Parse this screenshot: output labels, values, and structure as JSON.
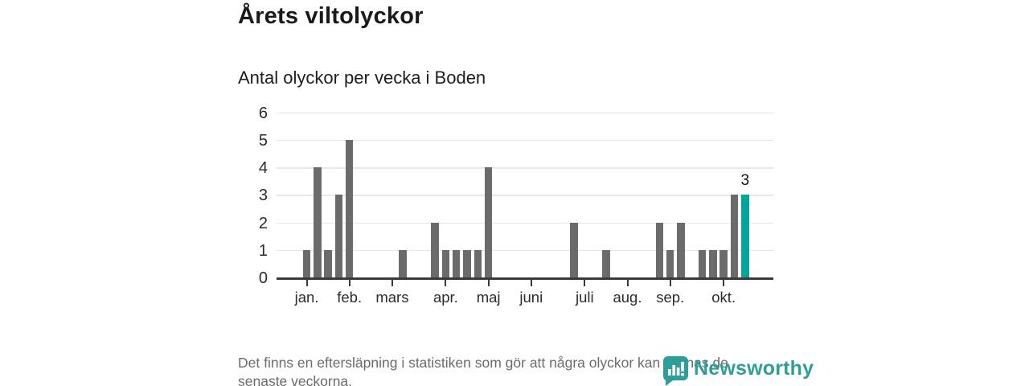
{
  "title": "Årets viltolyckor",
  "subtitle": "Antal olyckor per vecka i Boden",
  "footer": {
    "lines": [
      "Det finns en eftersläpning i statistiken som gör att några olyckor kan saknas de",
      "senaste veckorna."
    ]
  },
  "logo": {
    "text": "Newsworthy",
    "icon": "newsworthy-marker-bar-chart-icon"
  },
  "colors": {
    "bar": "#6b6b6b",
    "accent": "#00a69c",
    "logo_teal": "#2e9e99",
    "grid": "#e7e7e7",
    "axis": "#3a3a3a",
    "text": "#1a1a1a",
    "muted_text": "#6b6b6b"
  },
  "chart_data": {
    "type": "bar",
    "title": "Årets viltolyckor",
    "subtitle": "Antal olyckor per vecka i Boden",
    "x_unit": "vecka",
    "n_weeks": 42,
    "values": [
      1,
      4,
      1,
      3,
      5,
      0,
      0,
      0,
      0,
      1,
      0,
      0,
      2,
      1,
      1,
      1,
      1,
      4,
      0,
      0,
      0,
      0,
      0,
      0,
      0,
      2,
      0,
      0,
      1,
      0,
      0,
      0,
      0,
      2,
      1,
      2,
      0,
      1,
      1,
      1,
      3,
      3
    ],
    "highlight_index": 41,
    "highlight_label": "3",
    "highlight_color": "#00a69c",
    "month_ticks": [
      {
        "label": "jan.",
        "week": 0
      },
      {
        "label": "feb.",
        "week": 4
      },
      {
        "label": "mars",
        "week": 8
      },
      {
        "label": "apr.",
        "week": 13
      },
      {
        "label": "maj",
        "week": 17
      },
      {
        "label": "juni",
        "week": 21
      },
      {
        "label": "juli",
        "week": 26
      },
      {
        "label": "aug.",
        "week": 30
      },
      {
        "label": "sep.",
        "week": 34
      },
      {
        "label": "okt.",
        "week": 39
      }
    ],
    "y_ticks": [
      0,
      1,
      2,
      3,
      4,
      5,
      6
    ],
    "ylim": [
      0,
      6
    ],
    "grid": "horizontal",
    "legend": "none"
  }
}
